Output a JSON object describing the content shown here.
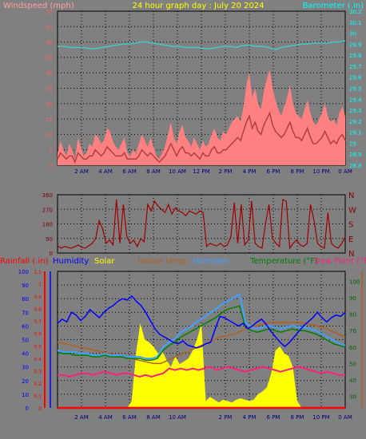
{
  "colors": {
    "background": "#808080",
    "grid": "#a0a0a0",
    "frame": "#000000",
    "title": "#ffff00",
    "wind_label": "#ffa0a0",
    "baro_label": "#00ffff",
    "wind_gust": "#ff8080",
    "wind_avg": "#b04040",
    "baro": "#40c8c8",
    "dir": "#a00000",
    "dir_labels": "#800000",
    "rain": "#ff0000",
    "humidity": "#0000ff",
    "solar": "#ffff00",
    "indoor": "#b06020",
    "humidex": "#40a0ff",
    "temperature": "#008000",
    "dewpoint": "#ff2080",
    "temp_axis": "#006400",
    "wind_axis": "#ff6060"
  },
  "chart_data": [
    {
      "type": "line",
      "title": "24 hour graph day : July 20 2024",
      "x_tick_labels": [
        "2 AM",
        "4 AM",
        "6 AM",
        "8 AM",
        "10 AM",
        "12 PM",
        "2 PM",
        "4 PM",
        "6 PM",
        "8 PM",
        "10 PM",
        "0 AM"
      ],
      "left_axis": {
        "label": "Windspeed (mph)",
        "ticks": [
          "0",
          "5",
          "10",
          "15",
          "20",
          "25",
          "30",
          "35",
          "40",
          "45",
          "50"
        ],
        "range": [
          0,
          50
        ]
      },
      "right_axis": {
        "label": "Barometer (.in)",
        "ticks": [
          "28.8",
          "28.9",
          "29",
          "29.1",
          "29.2",
          "29.3",
          "29.4",
          "29.5",
          "29.6",
          "29.7",
          "29.8",
          "29.9",
          "30",
          "30.1",
          "30.2"
        ],
        "range": [
          28.8,
          30.2
        ]
      },
      "series": [
        {
          "key": "gust",
          "values": [
            4,
            8,
            5,
            3,
            7,
            5,
            2,
            9,
            6,
            3,
            4,
            7,
            6,
            10,
            9,
            7,
            8,
            12,
            11,
            8,
            6,
            5,
            7,
            9,
            4,
            3,
            5,
            4,
            7,
            10,
            8,
            6,
            9,
            6,
            3,
            2,
            4,
            6,
            10,
            14,
            9,
            7,
            11,
            13,
            9,
            8,
            6,
            9,
            7,
            5,
            8,
            6,
            7,
            10,
            12,
            9,
            8,
            11,
            10,
            12,
            14,
            15,
            16,
            14,
            19,
            26,
            30,
            22,
            25,
            20,
            18,
            24,
            28,
            31,
            25,
            21,
            18,
            16,
            19,
            22,
            26,
            20,
            17,
            16,
            15,
            18,
            21,
            17,
            14,
            13,
            15,
            17,
            20,
            16,
            14,
            15,
            13,
            17,
            19,
            16
          ]
        },
        {
          "key": "avg",
          "values": [
            2,
            4,
            3,
            2,
            3,
            3,
            1,
            4,
            3,
            2,
            2,
            3,
            3,
            5,
            4,
            3,
            4,
            6,
            5,
            4,
            3,
            3,
            3,
            4,
            2,
            2,
            2,
            2,
            3,
            5,
            4,
            3,
            4,
            3,
            2,
            1,
            2,
            3,
            5,
            7,
            5,
            3,
            5,
            6,
            4,
            4,
            3,
            4,
            3,
            2,
            4,
            3,
            3,
            5,
            6,
            4,
            4,
            5,
            5,
            6,
            7,
            8,
            9,
            8,
            11,
            14,
            16,
            12,
            14,
            11,
            10,
            13,
            15,
            17,
            13,
            11,
            10,
            9,
            10,
            12,
            14,
            11,
            9,
            9,
            8,
            10,
            12,
            9,
            7,
            7,
            8,
            9,
            11,
            9,
            7,
            8,
            7,
            9,
            10,
            8
          ]
        },
        {
          "key": "baro",
          "values": [
            29.88,
            29.88,
            29.87,
            29.87,
            29.87,
            29.86,
            29.86,
            29.87,
            29.88,
            29.89,
            29.9,
            29.9,
            29.91,
            29.92,
            29.92,
            29.91,
            29.9,
            29.89,
            29.88,
            29.88,
            29.87,
            29.87,
            29.87,
            29.86,
            29.86,
            29.87,
            29.88,
            29.88,
            29.87,
            29.89,
            29.89,
            29.88,
            29.88,
            29.87,
            29.85,
            29.87,
            29.88,
            29.89,
            29.9,
            29.9,
            29.91,
            29.91,
            29.91,
            29.92,
            29.92,
            29.93
          ]
        }
      ]
    },
    {
      "type": "line",
      "title": "",
      "left_axis": {
        "ticks": [
          "0",
          "90",
          "180",
          "270",
          "360"
        ],
        "range": [
          0,
          360
        ]
      },
      "right_axis": {
        "ticks": [
          "N",
          "W",
          "S",
          "E",
          "N"
        ]
      },
      "series": [
        {
          "key": "direction",
          "values": [
            45,
            30,
            40,
            35,
            30,
            40,
            50,
            35,
            30,
            45,
            60,
            90,
            200,
            150,
            60,
            80,
            50,
            330,
            60,
            300,
            100,
            60,
            80,
            40,
            90,
            70,
            300,
            260,
            320,
            290,
            270,
            250,
            300,
            240,
            280,
            260,
            250,
            230,
            260,
            250,
            240,
            260,
            250,
            40,
            60,
            50,
            45,
            60,
            40,
            50,
            100,
            310,
            60,
            300,
            50,
            80,
            320,
            60,
            40,
            30,
            180,
            300,
            90,
            60,
            40,
            330,
            320,
            30,
            60,
            80,
            50,
            40,
            60,
            300,
            200,
            60,
            40,
            30,
            250,
            60,
            40,
            30,
            60,
            100
          ]
        }
      ]
    },
    {
      "type": "line",
      "title": "",
      "header_labels": {
        "rainfall": "Rainfall (.in)",
        "humidity": "Humidity",
        "solar": "Solar",
        "indoor": "Indoor temp",
        "humidex": "Humidex",
        "temperature": "Temperature (°F)",
        "dewpoint": "Dew Point (°F)"
      },
      "x_tick_labels": [
        "2 AM",
        "4 AM",
        "6 AM",
        "8 AM",
        "10 AM",
        "2 PM",
        "4 PM",
        "6 PM",
        "8 PM",
        "10 PM",
        "0 AM"
      ],
      "rain_axis": {
        "ticks": [
          "0",
          "0.1",
          "0.2",
          "0.3",
          "0.4",
          "0.5",
          "0.6",
          "0.7",
          "0.8",
          "0.9",
          "1",
          "1.1"
        ],
        "range": [
          0,
          1.1
        ]
      },
      "humidity_axis": {
        "ticks": [
          "0",
          "10",
          "20",
          "30",
          "40",
          "50",
          "60",
          "70",
          "80",
          "90",
          "100"
        ],
        "range": [
          0,
          100
        ]
      },
      "temp_axis": {
        "ticks": [
          "30",
          "40",
          "50",
          "60",
          "70",
          "80",
          "90",
          "100"
        ],
        "range": [
          23,
          106
        ]
      },
      "series": [
        {
          "key": "humidity",
          "values": [
            62,
            65,
            63,
            70,
            68,
            64,
            67,
            72,
            69,
            66,
            70,
            73,
            75,
            78,
            80,
            79,
            82,
            78,
            75,
            70,
            64,
            58,
            54,
            52,
            50,
            48,
            47,
            49,
            46,
            45,
            44,
            45,
            47,
            48,
            58,
            67,
            66,
            64,
            62,
            60,
            62,
            58,
            60,
            63,
            65,
            61,
            56,
            52,
            48,
            45,
            48,
            52,
            56,
            60,
            63,
            66,
            70,
            66,
            63,
            66,
            68,
            67,
            70
          ]
        },
        {
          "key": "temperature",
          "values": [
            57,
            56,
            56,
            55,
            55,
            55,
            54,
            54,
            55,
            54,
            54,
            54,
            53,
            53,
            53,
            52,
            52,
            53,
            58,
            61,
            63,
            66,
            68,
            70,
            72,
            74,
            76,
            78,
            81,
            83,
            84,
            85,
            72,
            70,
            69,
            70,
            71,
            70,
            69,
            70,
            71,
            70,
            70,
            69,
            68,
            66,
            64,
            62,
            61,
            60
          ]
        },
        {
          "key": "humidex",
          "values": [
            58,
            57,
            57,
            57,
            56,
            56,
            55,
            55,
            56,
            55,
            55,
            55,
            54,
            54,
            54,
            53,
            53,
            54,
            60,
            63,
            65,
            69,
            71,
            73,
            76,
            78,
            81,
            83,
            86,
            88,
            90,
            92,
            75,
            72,
            71,
            72,
            73,
            72,
            71,
            72,
            73,
            72,
            72,
            71,
            70,
            68,
            66,
            64,
            62,
            61
          ]
        },
        {
          "key": "indoor",
          "values": [
            63,
            62,
            61,
            60,
            59,
            58,
            57,
            56,
            55,
            54,
            53,
            52,
            51,
            50,
            50,
            52,
            54,
            56,
            58,
            60,
            62,
            64,
            66,
            67,
            68,
            70,
            72,
            73,
            74,
            75,
            75,
            75,
            75,
            75,
            74,
            73,
            72,
            70,
            68,
            66
          ]
        },
        {
          "key": "dewpoint",
          "values": [
            43,
            43,
            42,
            43,
            44,
            44,
            43,
            44,
            45,
            44,
            43,
            44,
            44,
            43,
            42,
            43,
            42,
            43,
            44,
            47,
            46,
            47,
            46,
            47,
            46,
            47,
            48,
            46,
            47,
            48,
            47,
            46,
            45,
            46,
            47,
            48,
            47,
            46,
            45,
            46,
            47,
            48,
            47,
            46,
            45,
            44,
            45,
            44,
            43,
            43
          ]
        },
        {
          "key": "solar",
          "values": [
            0,
            0,
            0,
            0,
            0,
            0,
            0,
            0,
            0,
            0,
            0,
            0,
            0,
            0,
            0,
            0,
            0,
            5,
            40,
            62,
            50,
            48,
            45,
            40,
            42,
            35,
            30,
            38,
            32,
            34,
            36,
            42,
            50,
            62,
            5,
            8,
            6,
            4,
            6,
            5,
            4,
            6,
            7,
            6,
            5,
            6,
            10,
            12,
            15,
            25,
            42,
            45,
            40,
            38,
            30,
            5,
            0,
            0,
            0,
            0,
            0,
            0,
            0,
            0,
            0,
            0,
            0
          ]
        },
        {
          "key": "rainfall",
          "values": [
            0,
            0,
            0,
            0,
            0,
            0,
            0,
            0,
            0,
            0,
            0,
            0
          ]
        }
      ]
    }
  ]
}
